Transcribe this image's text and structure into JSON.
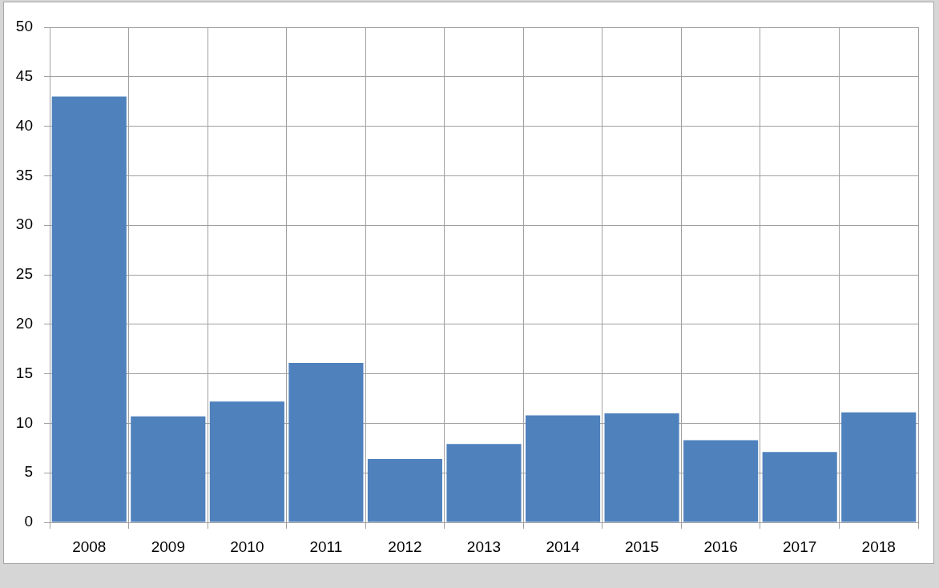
{
  "chart_data": {
    "type": "bar",
    "categories": [
      "2008",
      "2009",
      "2010",
      "2011",
      "2012",
      "2013",
      "2014",
      "2015",
      "2016",
      "2017",
      "2018"
    ],
    "values": [
      43.0,
      10.7,
      12.2,
      16.1,
      6.4,
      7.9,
      10.8,
      11.0,
      8.3,
      7.1,
      11.1
    ],
    "color": "#4f81bd",
    "ylim": [
      0,
      50
    ],
    "yticks": [
      0,
      5,
      10,
      15,
      20,
      25,
      30,
      35,
      40,
      45,
      50
    ],
    "grid": true
  }
}
